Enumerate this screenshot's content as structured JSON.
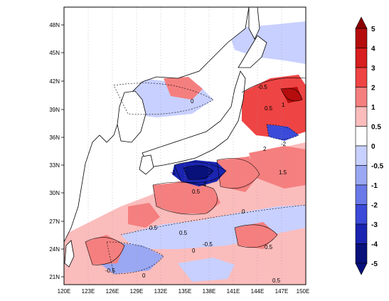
{
  "map": {
    "lat_labels": [
      "48N",
      "45N",
      "42N",
      "39N",
      "36N",
      "33N",
      "30N",
      "27N",
      "24N",
      "21N"
    ],
    "lon_labels": [
      "120E",
      "123E",
      "126E",
      "129E",
      "132E",
      "135E",
      "138E",
      "141E",
      "144E",
      "147E",
      "150E"
    ],
    "contour_labels": [
      "0",
      "0.5",
      "-0.5",
      "1",
      "-1",
      "2",
      "-2",
      "-4",
      "0.5",
      "0",
      "-0.5",
      "0.5",
      "1.5",
      "0.5",
      "0",
      "-0.5",
      "0.5",
      "0",
      "0.5"
    ]
  },
  "colorbar": {
    "labels": [
      "5",
      "4",
      "3",
      "2",
      "1",
      "0.5",
      "0",
      "-0.5",
      "-1",
      "-2",
      "-3",
      "-4",
      "-5"
    ],
    "colors": [
      "#8b0000",
      "#b50d0d",
      "#d81e1e",
      "#ef4444",
      "#f57f7f",
      "#fbbcbc",
      "#ffffff",
      "#c8d0ff",
      "#9aa7f2",
      "#6a79e8",
      "#3b4ad8",
      "#1a24b0",
      "#08107a"
    ]
  }
}
